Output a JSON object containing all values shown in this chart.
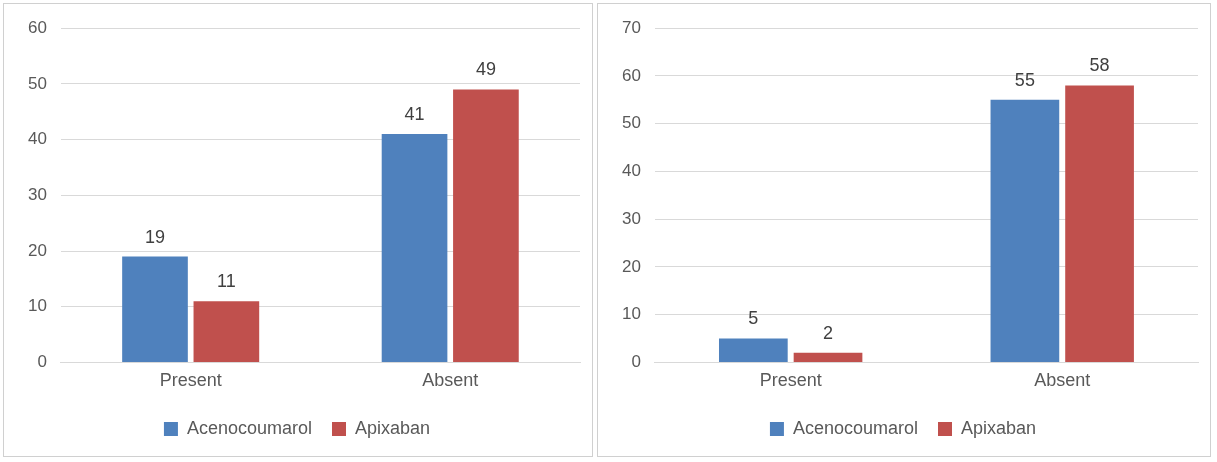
{
  "chart_data": [
    {
      "type": "bar",
      "categories": [
        "Present",
        "Absent"
      ],
      "series": [
        {
          "name": "Acenocoumarol",
          "color": "#4f81bd",
          "values": [
            19,
            41
          ]
        },
        {
          "name": "Apixaban",
          "color": "#c0504d",
          "values": [
            11,
            49
          ]
        }
      ],
      "ylim": [
        0,
        60
      ],
      "yticks": [
        0,
        10,
        20,
        30,
        40,
        50,
        60
      ],
      "grid": "y",
      "legend": "bottom",
      "data_labels": true
    },
    {
      "type": "bar",
      "categories": [
        "Present",
        "Absent"
      ],
      "series": [
        {
          "name": "Acenocoumarol",
          "color": "#4f81bd",
          "values": [
            5,
            55
          ]
        },
        {
          "name": "Apixaban",
          "color": "#c0504d",
          "values": [
            2,
            58
          ]
        }
      ],
      "ylim": [
        0,
        70
      ],
      "yticks": [
        0,
        10,
        20,
        30,
        40,
        50,
        60,
        70
      ],
      "grid": "y",
      "legend": "bottom",
      "data_labels": true
    }
  ]
}
